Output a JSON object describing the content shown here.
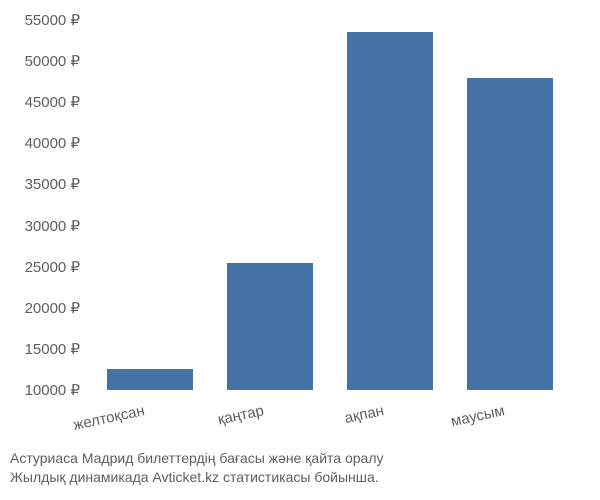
{
  "chart": {
    "type": "bar",
    "categories": [
      "желтоқсан",
      "қаңтар",
      "ақпан",
      "маусым"
    ],
    "values": [
      12500,
      25500,
      53500,
      48000
    ],
    "bar_color": "#4472a5",
    "background_color": "#ffffff",
    "y_min": 10000,
    "y_max": 55000,
    "y_ticks": [
      10000,
      15000,
      20000,
      25000,
      30000,
      35000,
      40000,
      45000,
      50000,
      55000
    ],
    "y_tick_labels": [
      "10000 ₽",
      "15000 ₽",
      "20000 ₽",
      "25000 ₽",
      "30000 ₽",
      "35000 ₽",
      "40000 ₽",
      "45000 ₽",
      "50000 ₽",
      "55000 ₽"
    ],
    "bar_width_ratio": 0.72,
    "tick_fontsize": 15,
    "tick_color": "#5e5e5e",
    "x_label_rotation": -12
  },
  "caption": {
    "line1": "Астуриаса Мадрид билеттердің бағасы және қайта оралу",
    "line2": "Жылдық динамикада Avticket.kz статистикасы бойынша.",
    "color": "#5e5e5e",
    "fontsize": 14
  }
}
